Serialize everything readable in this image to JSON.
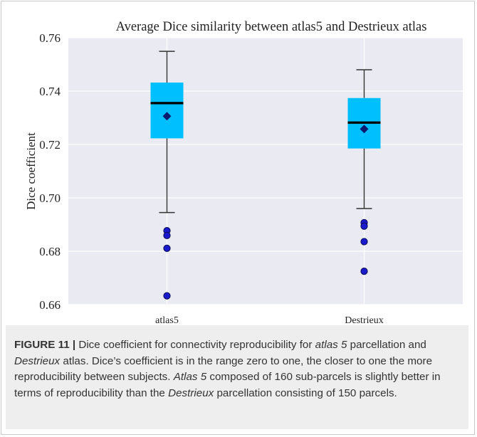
{
  "chart_data": {
    "type": "box",
    "title": "Average Dice similarity between atlas5 and Destrieux atlas",
    "xlabel": "",
    "ylabel": "Dice coefficient",
    "ylim": [
      0.66,
      0.76
    ],
    "yticks": [
      "0.66",
      "0.68",
      "0.70",
      "0.72",
      "0.74",
      "0.76"
    ],
    "grid": true,
    "box_color": "#00bfff",
    "median_color": "#000000",
    "mean_color": "#0a1a6e",
    "outlier_color": "#1a1acd",
    "background_color": "#eaeaf2",
    "categories": [
      "atlas5",
      "Destrieux"
    ],
    "boxes": [
      {
        "label": "atlas5",
        "whisker_low": 0.6945,
        "q1": 0.7223,
        "median": 0.7355,
        "q3": 0.7432,
        "whisker_high": 0.7549,
        "mean": 0.7306,
        "outliers": [
          0.6877,
          0.6859,
          0.6811,
          0.6633
        ]
      },
      {
        "label": "Destrieux",
        "whisker_low": 0.696,
        "q1": 0.7185,
        "median": 0.7282,
        "q3": 0.7374,
        "whisker_high": 0.748,
        "mean": 0.7258,
        "outliers": [
          0.6907,
          0.6894,
          0.6836,
          0.6725
        ]
      }
    ]
  },
  "caption": {
    "label": "FIGURE 11 |",
    "segments": [
      {
        "text": " Dice coefficient for connectivity reproducibility for ",
        "italic": false
      },
      {
        "text": "atlas 5",
        "italic": true
      },
      {
        "text": " parcellation and ",
        "italic": false
      },
      {
        "text": "Destrieux",
        "italic": true
      },
      {
        "text": " atlas. Dice’s coefficient is in the range zero to one, the closer to one the more reproducibility between subjects. ",
        "italic": false
      },
      {
        "text": "Atlas 5",
        "italic": true
      },
      {
        "text": " composed of 160 sub-parcels is slightly better in terms of reproducibility than the ",
        "italic": false
      },
      {
        "text": "Destrieux",
        "italic": true
      },
      {
        "text": " parcellation consisting of 150 parcels.",
        "italic": false
      }
    ]
  }
}
